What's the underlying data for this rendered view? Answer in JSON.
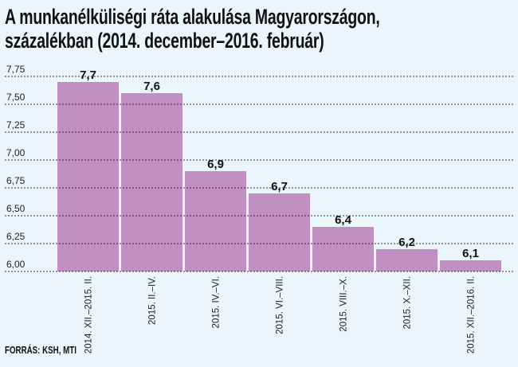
{
  "chart_data": {
    "type": "bar",
    "title": "A munkanélküliségi ráta alakulása Magyarországon, százalékban (2014. december–2016. február)",
    "title_lines": [
      "A munkanélküliségi ráta alakulása Magyarországon,",
      "százalékban (2014. december–2016. február)"
    ],
    "categories": [
      "2014. XII.–2015. II.",
      "2015. II.–IV.",
      "2015. IV.–VI.",
      "2015. VI.–VIII.",
      "2015. VIII.–X.",
      "2015. X.–XII.",
      "2015. XII.–2016. II."
    ],
    "values": [
      7.7,
      7.6,
      6.9,
      6.7,
      6.4,
      6.2,
      6.1
    ],
    "value_labels": [
      "7,7",
      "7,6",
      "6,9",
      "6,7",
      "6,4",
      "6,2",
      "6,1"
    ],
    "yticks": [
      6.0,
      6.25,
      6.5,
      6.75,
      7.0,
      7.25,
      7.5,
      7.75
    ],
    "ytick_labels": [
      "6,00",
      "6,25",
      "6,50",
      "6,75",
      "7,00",
      "7,25",
      "7,50",
      "7,75"
    ],
    "ylim": [
      6.0,
      7.75
    ],
    "xlabel": "",
    "ylabel": "",
    "grid": true,
    "bar_color": "#c18fc1",
    "source": "FORRÁS: KSH, MTI"
  }
}
